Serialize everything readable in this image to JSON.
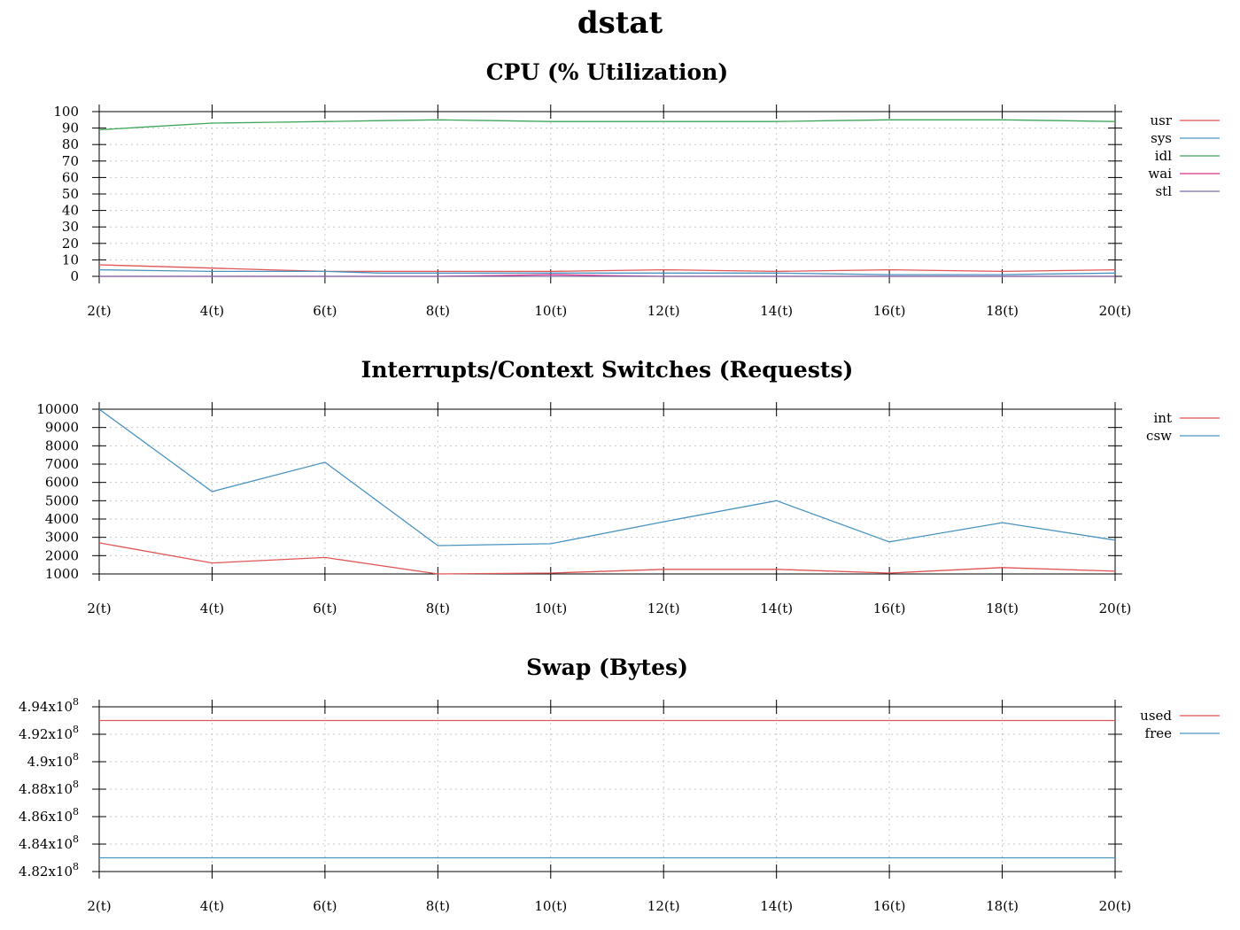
{
  "page": {
    "title": "dstat"
  },
  "chart_data": [
    {
      "id": "cpu",
      "type": "line",
      "title": "CPU (% Utilization)",
      "x": [
        2,
        3,
        4,
        5,
        6,
        7,
        8,
        9,
        10,
        11,
        12,
        13,
        14,
        15,
        16,
        17,
        18,
        19,
        20
      ],
      "x_ticks": [
        2,
        4,
        6,
        8,
        10,
        12,
        14,
        16,
        18,
        20
      ],
      "x_tick_labels": [
        "2(t)",
        "4(t)",
        "6(t)",
        "8(t)",
        "10(t)",
        "12(t)",
        "14(t)",
        "16(t)",
        "18(t)",
        "20(t)"
      ],
      "ylim": [
        0,
        100
      ],
      "y_ticks": [
        0,
        10,
        20,
        30,
        40,
        50,
        60,
        70,
        80,
        90,
        100
      ],
      "y_tick_labels": [
        "0",
        "10",
        "20",
        "30",
        "40",
        "50",
        "60",
        "70",
        "80",
        "90",
        "100"
      ],
      "grid": true,
      "legend_position": "right",
      "series": [
        {
          "name": "usr",
          "color": "#e05555",
          "values": [
            7,
            6,
            5,
            4,
            3,
            3,
            3,
            3,
            3,
            3.5,
            4,
            3.5,
            3,
            3.5,
            4,
            3.5,
            3,
            3.5,
            4
          ]
        },
        {
          "name": "sys",
          "color": "#4a93c0",
          "values": [
            4,
            3.5,
            3,
            3,
            3,
            2,
            2,
            2,
            2,
            2,
            2,
            2,
            2,
            1.5,
            1,
            1,
            1,
            1.5,
            2
          ]
        },
        {
          "name": "idl",
          "color": "#3fa55a",
          "values": [
            89,
            91,
            93,
            93.5,
            94,
            94.5,
            95,
            94.5,
            94,
            94,
            94,
            94,
            94,
            94.5,
            95,
            95,
            95,
            94.5,
            94
          ]
        },
        {
          "name": "wai",
          "color": "#d8318a",
          "values": [
            0,
            0,
            0,
            0,
            0,
            0,
            0,
            0.5,
            1,
            0.5,
            0,
            0,
            0,
            0,
            0,
            0,
            0,
            0,
            0
          ]
        },
        {
          "name": "stl",
          "color": "#7f6bb0",
          "values": [
            0,
            0,
            0,
            0,
            0,
            0,
            0,
            0,
            0,
            0,
            0,
            0,
            0,
            0,
            0,
            0,
            0,
            0,
            0
          ]
        }
      ]
    },
    {
      "id": "irq",
      "type": "line",
      "title": "Interrupts/Context Switches (Requests)",
      "x": [
        2,
        4,
        6,
        8,
        10,
        12,
        14,
        16,
        18,
        20
      ],
      "x_ticks": [
        2,
        4,
        6,
        8,
        10,
        12,
        14,
        16,
        18,
        20
      ],
      "x_tick_labels": [
        "2(t)",
        "4(t)",
        "6(t)",
        "8(t)",
        "10(t)",
        "12(t)",
        "14(t)",
        "16(t)",
        "18(t)",
        "20(t)"
      ],
      "ylim": [
        1000,
        10000
      ],
      "y_ticks": [
        1000,
        2000,
        3000,
        4000,
        5000,
        6000,
        7000,
        8000,
        9000,
        10000
      ],
      "y_tick_labels": [
        "1000",
        "2000",
        "3000",
        "4000",
        "5000",
        "6000",
        "7000",
        "8000",
        "9000",
        "10000"
      ],
      "grid": true,
      "legend_position": "right",
      "series": [
        {
          "name": "int",
          "color": "#e05555",
          "values": [
            2700,
            1600,
            1900,
            1000,
            1050,
            1250,
            1250,
            1050,
            1350,
            1150
          ]
        },
        {
          "name": "csw",
          "color": "#4a93c0",
          "values": [
            10000,
            5500,
            7100,
            2550,
            2650,
            3850,
            5000,
            2750,
            3800,
            2850
          ]
        }
      ]
    },
    {
      "id": "swap",
      "type": "line",
      "title": "Swap (Bytes)",
      "x": [
        2,
        4,
        6,
        8,
        10,
        12,
        14,
        16,
        18,
        20
      ],
      "x_ticks": [
        2,
        4,
        6,
        8,
        10,
        12,
        14,
        16,
        18,
        20
      ],
      "x_tick_labels": [
        "2(t)",
        "4(t)",
        "6(t)",
        "8(t)",
        "10(t)",
        "12(t)",
        "14(t)",
        "16(t)",
        "18(t)",
        "20(t)"
      ],
      "ylim": [
        482000000,
        494000000
      ],
      "y_ticks": [
        482000000,
        484000000,
        486000000,
        488000000,
        490000000,
        492000000,
        494000000
      ],
      "y_tick_mantissas": [
        "4.82",
        "4.84",
        "4.86",
        "4.88",
        "4.9",
        "4.92",
        "4.94"
      ],
      "y_tick_base": "x10",
      "y_tick_exponent": "8",
      "grid": true,
      "legend_position": "right",
      "series": [
        {
          "name": "used",
          "color": "#e05555",
          "values": [
            493000000,
            493000000,
            493000000,
            493000000,
            493000000,
            493000000,
            493000000,
            493000000,
            493000000,
            493000000
          ]
        },
        {
          "name": "free",
          "color": "#4a93c0",
          "values": [
            483000000,
            483000000,
            483000000,
            483000000,
            483000000,
            483000000,
            483000000,
            483000000,
            483000000,
            483000000
          ]
        }
      ]
    }
  ]
}
